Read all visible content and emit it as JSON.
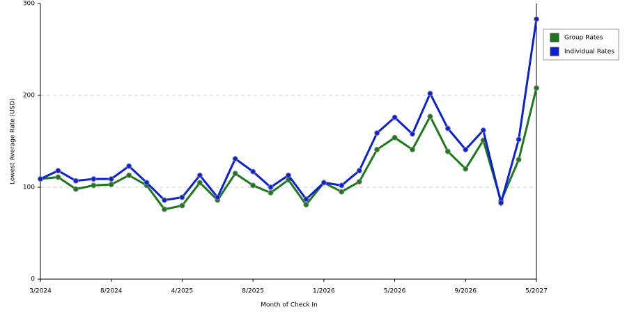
{
  "chart_data": {
    "type": "line",
    "x_label": "Month of Check In",
    "y_label": "Lowest Average Rate (USD)",
    "categories": [
      "3/2024",
      null,
      null,
      null,
      "8/2024",
      null,
      null,
      null,
      "4/2025",
      null,
      null,
      null,
      "8/2025",
      null,
      null,
      null,
      "1/2026",
      null,
      null,
      null,
      "5/2026",
      null,
      null,
      null,
      "9/2026",
      null,
      null,
      null,
      "5/2027"
    ],
    "series": [
      {
        "name": "Group Rates",
        "color": "#1a7a1a",
        "values": [
          109,
          111,
          98,
          102,
          103,
          113,
          102,
          76,
          80,
          105,
          86,
          115,
          102,
          94,
          108,
          81,
          105,
          95,
          106,
          141,
          154,
          141,
          177,
          139,
          120,
          151,
          85,
          130,
          208
        ]
      },
      {
        "name": "Individual Rates",
        "color": "#0a1ee0",
        "values": [
          109,
          118,
          107,
          109,
          109,
          123,
          105,
          86,
          89,
          113,
          89,
          131,
          117,
          100,
          113,
          87,
          105,
          102,
          118,
          159,
          176,
          158,
          202,
          164,
          141,
          162,
          83,
          152,
          283
        ]
      }
    ],
    "ylim": [
      0,
      300
    ],
    "yticks": [
      0,
      100,
      200,
      300
    ],
    "grid": true,
    "legend": "right"
  }
}
